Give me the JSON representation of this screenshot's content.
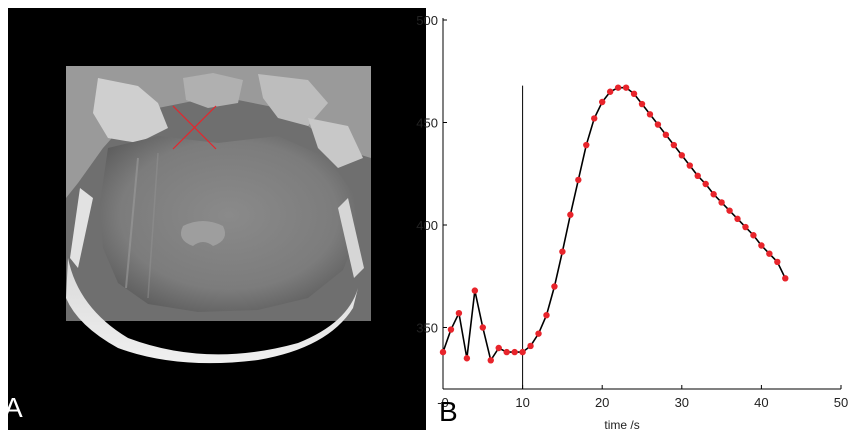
{
  "panels": {
    "a": {
      "letter": "A",
      "marker_color": "#e8242b"
    },
    "b": {
      "letter": "B"
    }
  },
  "chart_data": {
    "type": "line",
    "title": "",
    "xlabel": "time /s",
    "ylabel": "",
    "xlim": [
      0,
      50
    ],
    "ylim": [
      320,
      500
    ],
    "x_ticks": [
      "-0",
      "10",
      "20",
      "30",
      "40",
      "50"
    ],
    "x_tick_values": [
      0,
      10,
      20,
      30,
      40,
      50
    ],
    "y_ticks": [
      "350",
      "400",
      "450",
      "500"
    ],
    "y_tick_values": [
      350,
      400,
      450,
      500
    ],
    "marker_line_x": 10,
    "marker_line_top": 468,
    "grid": false,
    "colors": {
      "line": "#000000",
      "points": "#e8242b"
    },
    "series": [
      {
        "x": [
          0,
          1,
          2,
          3,
          4,
          5,
          6,
          7,
          8,
          9,
          10,
          11,
          12,
          13,
          14,
          15,
          16,
          17,
          18,
          19,
          20,
          21,
          22,
          23,
          24,
          25,
          26,
          27,
          28,
          29,
          30,
          31,
          32,
          33,
          34,
          35,
          36,
          37,
          38,
          39,
          40,
          41,
          42,
          43
        ],
        "y": [
          338,
          349,
          357,
          335,
          368,
          350,
          334,
          340,
          338,
          338,
          338,
          341,
          347,
          356,
          370,
          387,
          405,
          422,
          439,
          452,
          460,
          465,
          467,
          467,
          464,
          459,
          454,
          449,
          444,
          439,
          434,
          429,
          424,
          420,
          415,
          411,
          407,
          403,
          399,
          395,
          390,
          386,
          382,
          374
        ]
      }
    ]
  }
}
